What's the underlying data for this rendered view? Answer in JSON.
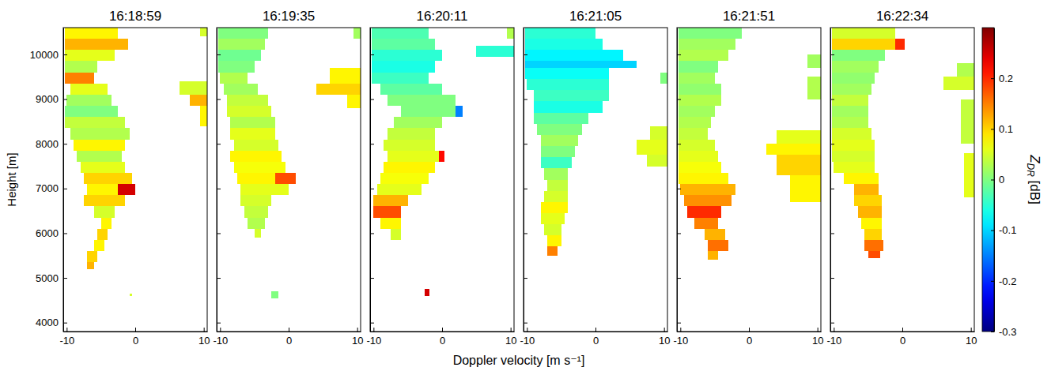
{
  "chart_data": {
    "type": "heatmap",
    "xlabel": "Doppler velocity [m s⁻¹]",
    "ylabel": "Height [m]",
    "xlim": [
      -10.5,
      10.5
    ],
    "ylim": [
      3800,
      10600
    ],
    "xticks": [
      -10,
      0,
      10
    ],
    "yticks": [
      4000,
      5000,
      6000,
      7000,
      8000,
      9000,
      10000
    ],
    "colorbar": {
      "label": "ZDR [dB]",
      "range": [
        -0.3,
        0.3
      ],
      "ticks": [
        -0.3,
        -0.2,
        -0.1,
        0,
        0.1,
        0.2
      ]
    },
    "panels": [
      {
        "title": "16:18:59",
        "cells": [
          [
            10350,
            10600,
            -10.3,
            -2.5,
            0.08
          ],
          [
            10100,
            10350,
            -10.3,
            -1,
            0.12
          ],
          [
            9850,
            10100,
            -10.3,
            -3,
            0.06
          ],
          [
            9600,
            9850,
            -10.3,
            -5.5,
            0.03
          ],
          [
            9350,
            9600,
            -10.3,
            -6,
            0.15
          ],
          [
            9100,
            9350,
            -9.5,
            -4,
            0.06
          ],
          [
            8850,
            9100,
            -10,
            -3.5,
            0.02
          ],
          [
            8600,
            8850,
            -10.3,
            -2.5,
            0.0
          ],
          [
            8350,
            8600,
            -10.3,
            -1.5,
            0.04
          ],
          [
            8100,
            8350,
            -9.5,
            -0.8,
            0.03
          ],
          [
            7850,
            8100,
            -9,
            -1.5,
            0.08
          ],
          [
            7600,
            7850,
            -8.5,
            -2,
            0.03
          ],
          [
            7350,
            7600,
            -8,
            -1.5,
            0.06
          ],
          [
            7100,
            7350,
            -7.5,
            -0.5,
            0.1
          ],
          [
            6850,
            7100,
            -7,
            -2.5,
            0.08
          ],
          [
            6850,
            7100,
            -2.5,
            0,
            0.25
          ],
          [
            6600,
            6850,
            -7.5,
            -1.5,
            0.1
          ],
          [
            6350,
            6600,
            -6,
            -3,
            0.05
          ],
          [
            6100,
            6350,
            -5,
            -3.5,
            0.08
          ],
          [
            5850,
            6100,
            -5.5,
            -4,
            0.1
          ],
          [
            5600,
            5850,
            -6,
            -4.5,
            0.08
          ],
          [
            5350,
            5600,
            -7,
            -5.5,
            0.1
          ],
          [
            5200,
            5350,
            -7,
            -6,
            0.12
          ],
          [
            4600,
            4650,
            -0.8,
            -0.5,
            0.05
          ],
          [
            10400,
            10600,
            9.5,
            10.5,
            0.05
          ],
          [
            9100,
            9400,
            6.5,
            10.5,
            0.05
          ],
          [
            8850,
            9100,
            8,
            10.5,
            0.12
          ],
          [
            8400,
            8850,
            9.5,
            10.5,
            0.08
          ]
        ]
      },
      {
        "title": "16:19:35",
        "cells": [
          [
            10350,
            10600,
            -10.3,
            -3,
            0.0
          ],
          [
            10100,
            10350,
            -10.3,
            -3.5,
            0.02
          ],
          [
            9850,
            10100,
            -10.3,
            -4,
            -0.01
          ],
          [
            9600,
            9850,
            -10.3,
            -5,
            0.0
          ],
          [
            9350,
            9600,
            -10,
            -6,
            0.03
          ],
          [
            9100,
            9350,
            -9.5,
            -4.5,
            0.02
          ],
          [
            8850,
            9100,
            -9,
            -3,
            0.04
          ],
          [
            8600,
            8850,
            -9,
            -2.5,
            0.05
          ],
          [
            8350,
            8600,
            -8.5,
            -2,
            0.03
          ],
          [
            8100,
            8350,
            -8.5,
            -2,
            0.06
          ],
          [
            7850,
            8100,
            -8,
            -1.5,
            0.05
          ],
          [
            7600,
            7850,
            -8.5,
            -1,
            0.08
          ],
          [
            7350,
            7600,
            -8,
            -0.5,
            0.07
          ],
          [
            7100,
            7350,
            -7.5,
            -2,
            0.08
          ],
          [
            7100,
            7350,
            -2,
            1,
            0.18
          ],
          [
            6850,
            7100,
            -7,
            0,
            0.06
          ],
          [
            6600,
            6850,
            -7,
            -2.5,
            0.05
          ],
          [
            6350,
            6600,
            -6.5,
            -3,
            0.04
          ],
          [
            6100,
            6350,
            -6,
            -3.5,
            0.03
          ],
          [
            5900,
            6100,
            -5,
            -4,
            0.05
          ],
          [
            4550,
            4700,
            -2.5,
            -1.5,
            0.0
          ],
          [
            10350,
            10600,
            9.5,
            10.5,
            0.02
          ],
          [
            9350,
            9700,
            6,
            10.5,
            0.08
          ],
          [
            9100,
            9350,
            4,
            10.5,
            0.1
          ],
          [
            8800,
            9100,
            8.5,
            10.5,
            0.08
          ]
        ]
      },
      {
        "title": "16:20:11",
        "cells": [
          [
            10350,
            10600,
            -10.3,
            -2,
            -0.03
          ],
          [
            10100,
            10350,
            -10.3,
            -1,
            -0.02
          ],
          [
            9850,
            10100,
            -10.3,
            0,
            -0.05
          ],
          [
            9600,
            9850,
            -10.3,
            -1,
            -0.06
          ],
          [
            9350,
            9600,
            -10.3,
            -2,
            -0.04
          ],
          [
            9100,
            9350,
            -9,
            0,
            -0.02
          ],
          [
            8850,
            9100,
            -8,
            2,
            0.0
          ],
          [
            8600,
            8850,
            -6,
            2,
            0.0
          ],
          [
            8600,
            8850,
            2,
            3,
            -0.15
          ],
          [
            8350,
            8600,
            -7,
            0,
            0.02
          ],
          [
            8100,
            8350,
            -8,
            -1,
            0.04
          ],
          [
            7850,
            8100,
            -8.5,
            -1,
            0.05
          ],
          [
            7600,
            7850,
            -8,
            0,
            0.06
          ],
          [
            7600,
            7850,
            -0.5,
            0.3,
            0.22
          ],
          [
            7350,
            7600,
            -8.5,
            -1,
            0.08
          ],
          [
            7100,
            7350,
            -9,
            -2,
            0.07
          ],
          [
            6850,
            7100,
            -9.5,
            -3,
            0.06
          ],
          [
            6600,
            6850,
            -10,
            -5,
            0.12
          ],
          [
            6350,
            6600,
            -10,
            -6,
            0.18
          ],
          [
            6100,
            6350,
            -9,
            -6,
            0.08
          ],
          [
            5850,
            6100,
            -7.5,
            -6,
            0.05
          ],
          [
            4600,
            4750,
            -2.5,
            -1.8,
            0.25
          ],
          [
            10350,
            10600,
            9.5,
            10.5,
            0.03
          ],
          [
            9950,
            10200,
            5,
            10.5,
            -0.05
          ]
        ]
      },
      {
        "title": "16:21:05",
        "cells": [
          [
            10350,
            10600,
            -10.3,
            0,
            -0.05
          ],
          [
            10100,
            10350,
            -10.3,
            1,
            -0.06
          ],
          [
            9850,
            10100,
            -10.3,
            4,
            -0.08
          ],
          [
            9700,
            9850,
            -10.3,
            6,
            -0.1
          ],
          [
            9450,
            9700,
            -10.3,
            2,
            -0.07
          ],
          [
            9200,
            9450,
            -10,
            2,
            -0.05
          ],
          [
            8950,
            9200,
            -9,
            2,
            -0.04
          ],
          [
            8700,
            8950,
            -9,
            1,
            -0.06
          ],
          [
            8450,
            8700,
            -9,
            -1,
            -0.02
          ],
          [
            8200,
            8450,
            -8.5,
            -2,
            0.0
          ],
          [
            7950,
            8200,
            -8,
            -2.5,
            0.02
          ],
          [
            7700,
            7950,
            -8,
            -3,
            0.0
          ],
          [
            7450,
            7700,
            -8,
            -3.5,
            -0.04
          ],
          [
            7200,
            7450,
            -7.5,
            -4,
            0.02
          ],
          [
            6950,
            7200,
            -7,
            -4,
            0.04
          ],
          [
            6700,
            6950,
            -7.5,
            -4,
            0.05
          ],
          [
            6450,
            6700,
            -8,
            -4,
            0.08
          ],
          [
            6200,
            6450,
            -8,
            -4.5,
            0.06
          ],
          [
            5950,
            6200,
            -7.5,
            -5,
            0.05
          ],
          [
            5700,
            5950,
            -7,
            -5,
            0.08
          ],
          [
            5500,
            5700,
            -7,
            -5.5,
            0.15
          ],
          [
            9350,
            9600,
            9.5,
            10.5,
            0.0
          ],
          [
            8100,
            8400,
            8,
            10.5,
            0.05
          ],
          [
            7750,
            8100,
            6,
            10.5,
            0.06
          ],
          [
            7500,
            7750,
            7.5,
            10.5,
            0.05
          ]
        ]
      },
      {
        "title": "16:21:51",
        "cells": [
          [
            10350,
            10600,
            -10.3,
            -1,
            0.0
          ],
          [
            10100,
            10350,
            -10.3,
            -2,
            0.02
          ],
          [
            9850,
            10100,
            -10.3,
            -3,
            0.03
          ],
          [
            9600,
            9850,
            -10.3,
            -4.5,
            0.0
          ],
          [
            9350,
            9600,
            -10.3,
            -5,
            0.02
          ],
          [
            9100,
            9350,
            -10.3,
            -4,
            0.01
          ],
          [
            8850,
            9100,
            -10.3,
            -4,
            0.03
          ],
          [
            8600,
            8850,
            -10.3,
            -5,
            0.02
          ],
          [
            8350,
            8600,
            -10.3,
            -5.5,
            0.03
          ],
          [
            8100,
            8350,
            -10.3,
            -6,
            0.04
          ],
          [
            7850,
            8100,
            -10.3,
            -5,
            0.05
          ],
          [
            7600,
            7850,
            -10.3,
            -4.5,
            0.06
          ],
          [
            7350,
            7600,
            -10.3,
            -4,
            0.07
          ],
          [
            7100,
            7350,
            -10.3,
            -3,
            0.08
          ],
          [
            6850,
            7100,
            -10,
            -2,
            0.12
          ],
          [
            6600,
            6850,
            -9.5,
            -2.5,
            0.14
          ],
          [
            6350,
            6600,
            -9,
            -4,
            0.2
          ],
          [
            6100,
            6350,
            -8,
            -4.5,
            0.15
          ],
          [
            5850,
            6100,
            -6.5,
            -3.5,
            0.12
          ],
          [
            5600,
            5850,
            -6,
            -3,
            0.16
          ],
          [
            5400,
            5600,
            -6,
            -4.5,
            0.12
          ],
          [
            9700,
            10000,
            8.5,
            10.5,
            0.02
          ],
          [
            9000,
            9500,
            8.5,
            10.5,
            0.03
          ],
          [
            8000,
            8300,
            4,
            10.5,
            0.06
          ],
          [
            7750,
            8000,
            2.5,
            10.5,
            0.08
          ],
          [
            7300,
            7750,
            4,
            10.5,
            0.1
          ],
          [
            6700,
            7300,
            6,
            10.5,
            0.08
          ]
        ]
      },
      {
        "title": "16:22:34",
        "cells": [
          [
            10350,
            10600,
            -10.3,
            -1,
            0.05
          ],
          [
            10100,
            10350,
            -10.3,
            -1,
            0.1
          ],
          [
            10100,
            10350,
            -1,
            0.3,
            0.2
          ],
          [
            9850,
            10100,
            -10.3,
            -2.5,
            0.0
          ],
          [
            9600,
            9850,
            -10.3,
            -3.5,
            0.02
          ],
          [
            9350,
            9600,
            -10.3,
            -4,
            0.01
          ],
          [
            9100,
            9350,
            -10.3,
            -4.5,
            0.02
          ],
          [
            8850,
            9100,
            -10.3,
            -5,
            0.04
          ],
          [
            8600,
            8850,
            -10.3,
            -5,
            0.02
          ],
          [
            8350,
            8600,
            -10.3,
            -5,
            0.03
          ],
          [
            8100,
            8350,
            -10.3,
            -4.5,
            0.05
          ],
          [
            7850,
            8100,
            -10.3,
            -4,
            0.06
          ],
          [
            7600,
            7850,
            -10.3,
            -4,
            0.05
          ],
          [
            7350,
            7600,
            -10,
            -4,
            0.06
          ],
          [
            7100,
            7350,
            -8.5,
            -3.5,
            0.08
          ],
          [
            6850,
            7100,
            -7,
            -3.5,
            0.12
          ],
          [
            6600,
            6850,
            -7,
            -3,
            0.1
          ],
          [
            6350,
            6600,
            -6.5,
            -3,
            0.12
          ],
          [
            6100,
            6350,
            -6,
            -3,
            0.08
          ],
          [
            5850,
            6100,
            -5.5,
            -3,
            0.1
          ],
          [
            5600,
            5850,
            -5.5,
            -2.8,
            0.16
          ],
          [
            5450,
            5600,
            -5,
            -3.2,
            0.18
          ],
          [
            9500,
            9800,
            8,
            10.5,
            0.03
          ],
          [
            9200,
            9500,
            6,
            10.5,
            0.05
          ],
          [
            8000,
            9000,
            8.5,
            10.5,
            0.04
          ],
          [
            6800,
            7800,
            9,
            10.5,
            0.06
          ]
        ]
      }
    ]
  }
}
